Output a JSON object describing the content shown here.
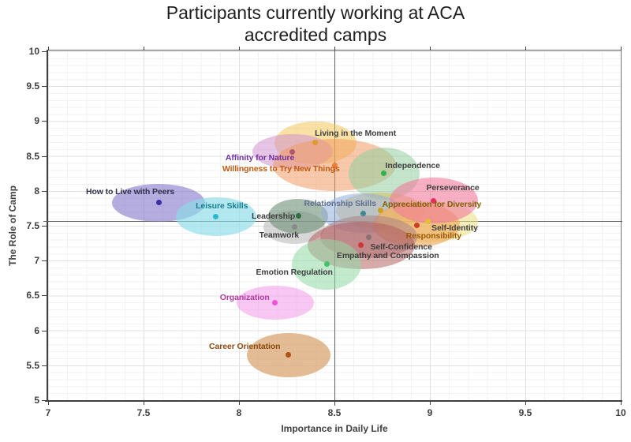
{
  "title": {
    "line1": "Participants currently working at ACA",
    "line2": "accredited camps"
  },
  "chart_data": {
    "type": "scatter",
    "title": "Participants currently working at ACA accredited camps",
    "xlabel": "Importance in Daily Life",
    "ylabel": "The Role of Camp",
    "xlim": [
      7,
      10
    ],
    "ylim": [
      5,
      10
    ],
    "x_ticks": [
      7,
      7.5,
      8,
      8.5,
      9,
      9.5,
      10
    ],
    "y_ticks": [
      10,
      9.5,
      9,
      8.5,
      8,
      7.5,
      7,
      6.5,
      6,
      5.5,
      5
    ],
    "grid": "minor 0.1 and major 0.5 gridlines, light gray",
    "legend": "none; each point labeled directly and shaded by a translucent ellipse",
    "mean_lines": {
      "x": 8.5,
      "y": 7.57
    },
    "points": [
      {
        "label": "Living in the Moment",
        "x": 8.4,
        "y": 8.69,
        "rx": 0.215,
        "ry": 0.305,
        "fill": "#F3C24A",
        "fill_opacity": 0.5,
        "dot_color": "#E09A2A",
        "label_color": "#3F3F3F",
        "lx": 8.61,
        "ly": 8.82
      },
      {
        "label": "Affinity for Nature",
        "x": 8.28,
        "y": 8.56,
        "rx": 0.211,
        "ry": 0.249,
        "fill": "#CF93CF",
        "fill_opacity": 0.55,
        "dot_color": "#AE5A6E",
        "label_color": "#7030A0",
        "lx": 8.11,
        "ly": 8.47
      },
      {
        "label": "Willingness to Try New Things",
        "x": 8.5,
        "y": 8.37,
        "rx": 0.322,
        "ry": 0.373,
        "fill": "#F09B63",
        "fill_opacity": 0.55,
        "dot_color": "#ED7D31",
        "label_color": "#C05A11",
        "lx": 8.22,
        "ly": 8.32
      },
      {
        "label": "Independence",
        "x": 8.76,
        "y": 8.25,
        "rx": 0.186,
        "ry": 0.373,
        "fill": "#94CFA0",
        "fill_opacity": 0.55,
        "dot_color": "#33B04F",
        "label_color": "#3F3F3F",
        "lx": 8.91,
        "ly": 8.36
      },
      {
        "label": "How to Live with Peers",
        "x": 7.58,
        "y": 7.83,
        "rx": 0.244,
        "ry": 0.272,
        "fill": "#8377CC",
        "fill_opacity": 0.6,
        "dot_color": "#3B2DA8",
        "label_color": "#30304A",
        "lx": 7.43,
        "ly": 7.99
      },
      {
        "label": "Leisure Skills",
        "x": 7.88,
        "y": 7.63,
        "rx": 0.211,
        "ry": 0.272,
        "fill": "#8ADBE8",
        "fill_opacity": 0.65,
        "dot_color": "#29B9CE",
        "label_color": "#17808F",
        "lx": 7.91,
        "ly": 7.78
      },
      {
        "label": "Teamwork",
        "x": 8.29,
        "y": 7.48,
        "rx": 0.161,
        "ry": 0.238,
        "fill": "#BDBDBD",
        "fill_opacity": 0.6,
        "dot_color": "#8A8A8A",
        "label_color": "#3F3F3F",
        "lx": 8.21,
        "ly": 7.36
      },
      {
        "label": "Leadership",
        "x": 8.31,
        "y": 7.64,
        "rx": 0.157,
        "ry": 0.249,
        "fill": "#6E9077",
        "fill_opacity": 0.6,
        "dot_color": "#2F7040",
        "label_color": "#3F3F3F",
        "lx": 8.18,
        "ly": 7.64
      },
      {
        "label": "Appreciation for Diversity",
        "x": 8.74,
        "y": 7.72,
        "rx": 0.231,
        "ry": 0.26,
        "fill": "#D8BD5C",
        "fill_opacity": 0.55,
        "dot_color": "#CFA11B",
        "label_color": "#7F6000",
        "lx": 9.01,
        "ly": 7.81
      },
      {
        "label": "Relationship Skills",
        "x": 8.65,
        "y": 7.68,
        "rx": 0.219,
        "ry": 0.283,
        "fill": "#93AEDC",
        "fill_opacity": 0.55,
        "dot_color": "#3F8894",
        "label_color": "#5F6F8F",
        "lx": 8.53,
        "ly": 7.82
      },
      {
        "label": "Self-Identity",
        "x": 8.99,
        "y": 7.56,
        "rx": 0.264,
        "ry": 0.294,
        "fill": "#EFE38E",
        "fill_opacity": 0.6,
        "dot_color": "#E3BF35",
        "label_color": "#3F3F3F",
        "lx": 9.13,
        "ly": 7.47
      },
      {
        "label": "Responsibility",
        "x": 8.93,
        "y": 7.51,
        "rx": 0.227,
        "ry": 0.317,
        "fill": "#EFA355",
        "fill_opacity": 0.6,
        "dot_color": "#D23A2B",
        "label_color": "#9C5700",
        "lx": 9.02,
        "ly": 7.35
      },
      {
        "label": "Perseverance",
        "x": 9.02,
        "y": 7.86,
        "rx": 0.231,
        "ry": 0.328,
        "fill": "#F27A9B",
        "fill_opacity": 0.6,
        "dot_color": "#E92D62",
        "label_color": "#3F3F3F",
        "lx": 9.12,
        "ly": 8.04
      },
      {
        "label": "Self-Confidence",
        "x": 8.68,
        "y": 7.34,
        "rx": 0.256,
        "ry": 0.305,
        "fill": "#AD8486",
        "fill_opacity": 0.55,
        "dot_color": "#8A7173",
        "label_color": "#3F3F3F",
        "lx": 8.85,
        "ly": 7.2
      },
      {
        "label": "Empathy and Compassion",
        "x": 8.64,
        "y": 7.22,
        "rx": 0.281,
        "ry": 0.339,
        "fill": "#B25757",
        "fill_opacity": 0.5,
        "dot_color": "#CC3737",
        "label_color": "#3F3F3F",
        "lx": 8.78,
        "ly": 7.07
      },
      {
        "label": "Emotion Regulation",
        "x": 8.46,
        "y": 6.95,
        "rx": 0.182,
        "ry": 0.362,
        "fill": "#8FDBA6",
        "fill_opacity": 0.55,
        "dot_color": "#44C468",
        "label_color": "#3F3F3F",
        "lx": 8.29,
        "ly": 6.83
      },
      {
        "label": "Organization",
        "x": 8.19,
        "y": 6.4,
        "rx": 0.202,
        "ry": 0.243,
        "fill": "#F48FE8",
        "fill_opacity": 0.5,
        "dot_color": "#EF52D4",
        "label_color": "#AE3C9E",
        "lx": 8.03,
        "ly": 6.47
      },
      {
        "label": "Career Orientation",
        "x": 8.26,
        "y": 5.65,
        "rx": 0.219,
        "ry": 0.317,
        "fill": "#D9A470",
        "fill_opacity": 0.75,
        "dot_color": "#B15013",
        "label_color": "#8C4A10",
        "lx": 8.03,
        "ly": 5.77
      }
    ]
  }
}
